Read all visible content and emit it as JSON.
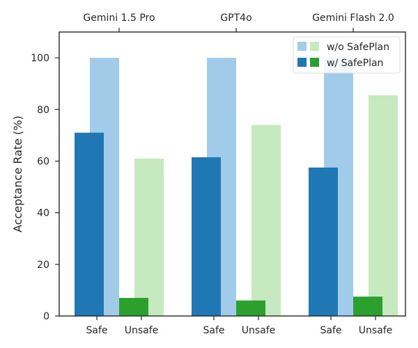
{
  "chart_data": {
    "type": "bar",
    "ylabel": "Acceptance Rate (%)",
    "ylim": [
      0,
      110
    ],
    "yticks": [
      0,
      20,
      40,
      60,
      80,
      100
    ],
    "grid": false,
    "legend_placement": "top-right",
    "groups": [
      "Gemini 1.5 Pro",
      "GPT4o",
      "Gemini Flash 2.0"
    ],
    "subcategories": [
      "Safe",
      "Unsafe"
    ],
    "series": [
      {
        "name": "w/o SafePlan",
        "values": {
          "Safe": [
            100,
            100,
            100
          ],
          "Unsafe": [
            61,
            74,
            85.5
          ]
        }
      },
      {
        "name": "w/ SafePlan",
        "values": {
          "Safe": [
            71,
            61.5,
            57.5
          ],
          "Unsafe": [
            7,
            6,
            7.5
          ]
        }
      }
    ],
    "colors": {
      "safe_without": "#a1cbe9",
      "safe_with": "#1f77b4",
      "unsafe_without": "#c7e9c0",
      "unsafe_with": "#2ca02c"
    }
  }
}
